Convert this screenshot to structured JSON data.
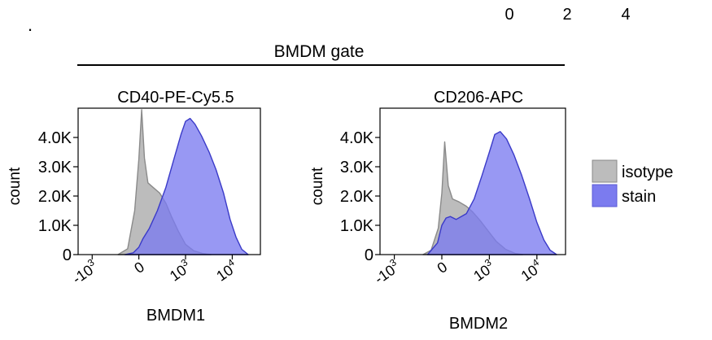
{
  "figure": {
    "top_dot": ".",
    "top_numbers": [
      "0",
      "2",
      "4"
    ],
    "gate_label": "BMDM gate",
    "legend": {
      "position": "right",
      "items": [
        {
          "label": "isotype",
          "color": "#bcbcbc"
        },
        {
          "label": "stain",
          "color": "#7b7bef"
        }
      ]
    }
  },
  "chart_data": [
    {
      "type": "area",
      "title": "CD40-PE-Cy5.5",
      "xlabel": "BMDM1",
      "xlabel_color": "#e8823a",
      "ylabel": "count",
      "yticks": [
        {
          "value": 0,
          "label": "0"
        },
        {
          "value": 1000,
          "label": "1.0K"
        },
        {
          "value": 2000,
          "label": "2.0K"
        },
        {
          "value": 3000,
          "label": "3.0K"
        },
        {
          "value": 4000,
          "label": "4.0K"
        }
      ],
      "xticks": [
        {
          "value": -1000,
          "label_base": "-10",
          "label_exp": "3"
        },
        {
          "value": 0,
          "label_base": "0",
          "label_exp": ""
        },
        {
          "value": 1000,
          "label_base": "10",
          "label_exp": "3"
        },
        {
          "value": 10000,
          "label_base": "10",
          "label_exp": "4"
        }
      ],
      "ylim": [
        0,
        5000
      ],
      "xlim": [
        -2000,
        40000
      ],
      "series": [
        {
          "name": "isotype",
          "color": "#bcbcbc",
          "x": [
            -280,
            -160,
            -60,
            0,
            40,
            80,
            130,
            200,
            280,
            380,
            500,
            700,
            1000,
            1500,
            2300,
            3500
          ],
          "y": [
            0,
            200,
            1500,
            3250,
            4950,
            3300,
            2450,
            2300,
            2100,
            1750,
            1300,
            800,
            350,
            130,
            40,
            0
          ]
        },
        {
          "name": "stain",
          "color": "#7b7bef",
          "x": [
            -200,
            -80,
            0,
            60,
            150,
            250,
            380,
            550,
            800,
            1000,
            1250,
            1600,
            2200,
            3200,
            4500,
            6500,
            9000,
            12000,
            16000,
            22000
          ],
          "y": [
            0,
            60,
            250,
            550,
            900,
            1500,
            2300,
            3200,
            4100,
            4550,
            4650,
            4450,
            4050,
            3500,
            2900,
            2100,
            1200,
            600,
            180,
            0
          ]
        }
      ]
    },
    {
      "type": "area",
      "title": "CD206-APC",
      "xlabel": "BMDM2",
      "xlabel_color": "#1aa84f",
      "ylabel": "count",
      "yticks": [
        {
          "value": 0,
          "label": "0"
        },
        {
          "value": 1000,
          "label": "1.0K"
        },
        {
          "value": 2000,
          "label": "2.0K"
        },
        {
          "value": 3000,
          "label": "3.0K"
        },
        {
          "value": 4000,
          "label": "4.0K"
        }
      ],
      "xticks": [
        {
          "value": -1000,
          "label_base": "-10",
          "label_exp": "3"
        },
        {
          "value": 0,
          "label_base": "0",
          "label_exp": ""
        },
        {
          "value": 1000,
          "label_base": "10",
          "label_exp": "3"
        },
        {
          "value": 10000,
          "label_base": "10",
          "label_exp": "4"
        }
      ],
      "ylim": [
        0,
        5000
      ],
      "xlim": [
        -2000,
        40000
      ],
      "series": [
        {
          "name": "isotype",
          "color": "#bcbcbc",
          "x": [
            -250,
            -150,
            -50,
            0,
            40,
            90,
            150,
            230,
            330,
            450,
            650,
            950,
            1400,
            2200,
            3500,
            5000
          ],
          "y": [
            0,
            150,
            900,
            2100,
            3850,
            2350,
            1900,
            1800,
            1650,
            1450,
            1150,
            800,
            450,
            180,
            40,
            0
          ]
        },
        {
          "name": "stain",
          "color": "#7b7bef",
          "x": [
            -200,
            -60,
            0,
            60,
            120,
            200,
            330,
            480,
            700,
            1000,
            1300,
            1700,
            2300,
            3300,
            4800,
            7000,
            10000,
            14000,
            19000,
            26000
          ],
          "y": [
            0,
            400,
            1000,
            1250,
            1300,
            1200,
            1400,
            1900,
            2700,
            3500,
            4100,
            4200,
            3950,
            3400,
            2700,
            1900,
            1100,
            500,
            150,
            0
          ]
        }
      ]
    }
  ]
}
